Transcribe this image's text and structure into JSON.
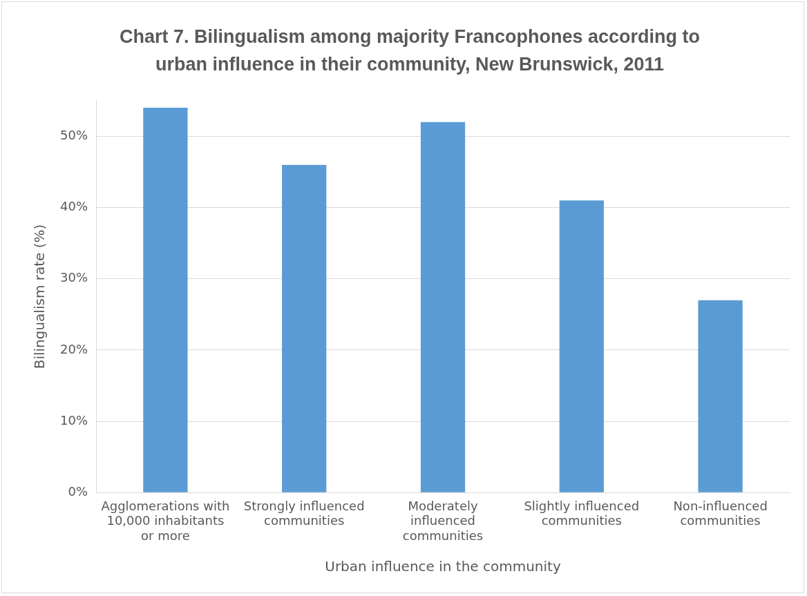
{
  "chart_data": {
    "type": "bar",
    "title": "Chart 7. Bilingualism among majority Francophones according to urban influence in their community, New Brunswick, 2011",
    "xlabel": "Urban influence in the community",
    "ylabel": "Bilingualism rate (%)",
    "categories": [
      "Agglomerations with 10,000 inhabitants or more",
      "Strongly influenced communities",
      "Moderately influenced communities",
      "Slightly influenced communities",
      "Non-influenced communities"
    ],
    "values": [
      54,
      46,
      52,
      41,
      27
    ],
    "color": "#5b9bd5",
    "ylim": [
      0,
      55
    ],
    "yticks": [
      {
        "value": 0,
        "label": "0%"
      },
      {
        "value": 10,
        "label": "10%"
      },
      {
        "value": 20,
        "label": "20%"
      },
      {
        "value": 30,
        "label": "30%"
      },
      {
        "value": 40,
        "label": "40%"
      },
      {
        "value": 50,
        "label": "50%"
      }
    ],
    "grid": "y",
    "legend": false
  }
}
